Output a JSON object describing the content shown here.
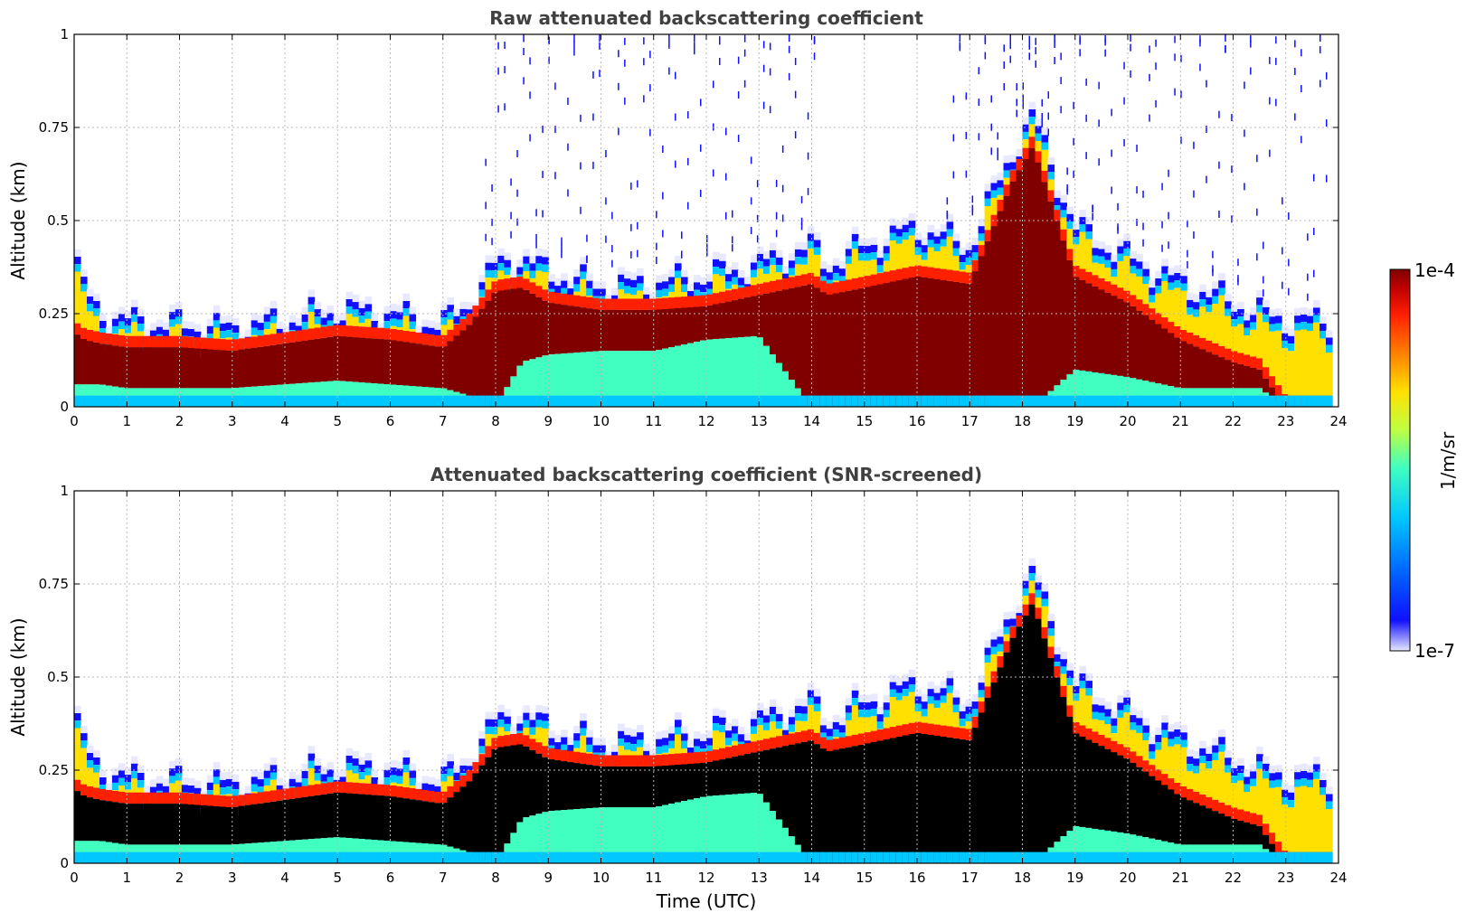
{
  "chart_data": [
    {
      "type": "heatmap",
      "title": "Raw attenuated backscattering coefficient",
      "xlabel": "",
      "ylabel": "Altitude (km)",
      "xlim": [
        0,
        24
      ],
      "ylim": [
        0,
        1
      ],
      "x_ticks": [
        "0",
        "1",
        "2",
        "3",
        "4",
        "5",
        "6",
        "7",
        "8",
        "9",
        "10",
        "11",
        "12",
        "13",
        "14",
        "15",
        "16",
        "17",
        "18",
        "19",
        "20",
        "21",
        "22",
        "23",
        "24"
      ],
      "y_ticks": [
        "0",
        "0.25",
        "0.5",
        "0.75",
        "1"
      ],
      "grid": true,
      "colorscale": "jet",
      "screened": false,
      "layer_profile": {
        "time_utc": [
          0,
          0.2,
          0.5,
          1,
          2,
          3,
          4,
          5,
          6,
          7,
          7.5,
          8,
          8.5,
          9,
          10,
          11,
          12,
          13,
          14,
          14.3,
          15,
          16,
          17,
          17.8,
          18.2,
          19,
          20,
          21,
          22,
          22.5,
          23,
          23.8
        ],
        "aerosol_top_km": [
          0.42,
          0.33,
          0.27,
          0.25,
          0.24,
          0.23,
          0.25,
          0.28,
          0.27,
          0.24,
          0.3,
          0.4,
          0.42,
          0.38,
          0.34,
          0.35,
          0.37,
          0.4,
          0.45,
          0.4,
          0.45,
          0.5,
          0.45,
          0.7,
          0.8,
          0.5,
          0.42,
          0.35,
          0.3,
          0.27,
          0.25,
          0.25
        ],
        "dense_layer_top_km": [
          0.2,
          0.18,
          0.17,
          0.16,
          0.16,
          0.15,
          0.17,
          0.19,
          0.18,
          0.16,
          0.22,
          0.31,
          0.32,
          0.28,
          0.26,
          0.26,
          0.27,
          0.3,
          0.33,
          0.3,
          0.32,
          0.35,
          0.33,
          0.6,
          0.7,
          0.35,
          0.28,
          0.18,
          0.12,
          0.1,
          0,
          0
        ],
        "dense_layer_bottom_km": [
          0.06,
          0.06,
          0.06,
          0.05,
          0.05,
          0.05,
          0.06,
          0.07,
          0.06,
          0.05,
          0.03,
          0,
          0.12,
          0.14,
          0.15,
          0.15,
          0.18,
          0.19,
          0,
          0,
          0,
          0,
          0,
          0,
          0,
          0.1,
          0.08,
          0.05,
          0.05,
          0.05,
          0,
          0
        ],
        "noise_top_km": [
          0,
          0,
          0,
          0,
          0,
          0,
          0,
          0,
          0,
          0,
          0,
          1,
          1,
          1,
          1,
          1,
          1,
          1,
          1,
          0,
          0,
          0,
          1,
          1,
          1,
          1,
          1,
          1,
          1,
          1,
          1,
          1
        ]
      }
    },
    {
      "type": "heatmap",
      "title": "Attenuated backscattering coefficient (SNR-screened)",
      "xlabel": "Time (UTC)",
      "ylabel": "Altitude (km)",
      "xlim": [
        0,
        24
      ],
      "ylim": [
        0,
        1
      ],
      "x_ticks": [
        "0",
        "1",
        "2",
        "3",
        "4",
        "5",
        "6",
        "7",
        "8",
        "9",
        "10",
        "11",
        "12",
        "13",
        "14",
        "15",
        "16",
        "17",
        "18",
        "19",
        "20",
        "21",
        "22",
        "23",
        "24"
      ],
      "y_ticks": [
        "0",
        "0.25",
        "0.5",
        "0.75",
        "1"
      ],
      "grid": true,
      "colorscale": "jet",
      "screened": true,
      "saturated_color": "#000000"
    }
  ],
  "colorbar": {
    "label": "1/m/sr",
    "max_label": "1e-4",
    "min_label": "1e-7",
    "range": [
      1e-07,
      0.0001
    ],
    "scale": "log",
    "colors": [
      "#e8e8ff",
      "#1010ff",
      "#0060ff",
      "#00c8ff",
      "#40ffc0",
      "#c0ff40",
      "#ffe000",
      "#ff8000",
      "#ff2000",
      "#c00000",
      "#800000"
    ]
  }
}
